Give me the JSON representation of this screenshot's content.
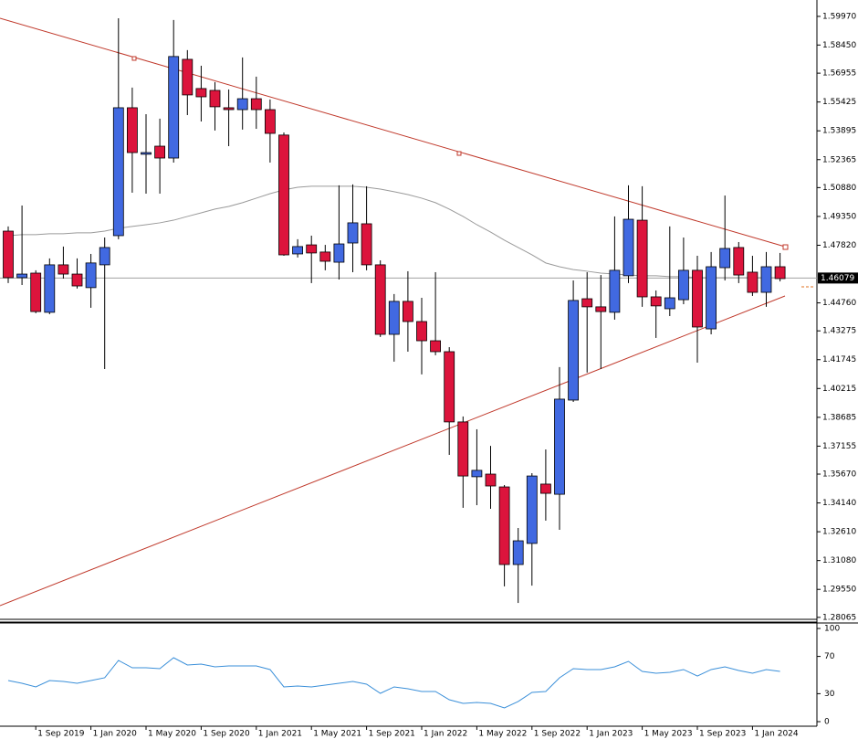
{
  "chart_data": [
    {
      "type": "candlestick",
      "categories": [
        null,
        null,
        "1 Sep 2019",
        null,
        null,
        null,
        "1 Jan 2020",
        null,
        null,
        null,
        "1 May 2020",
        null,
        null,
        null,
        "1 Sep 2020",
        null,
        null,
        null,
        "1 Jan 2021",
        null,
        null,
        null,
        "1 May 2021",
        null,
        null,
        null,
        "1 Sep 2021",
        null,
        null,
        null,
        "1 Jan 2022",
        null,
        null,
        null,
        "1 May 2022",
        null,
        null,
        null,
        "1 Sep 2022",
        null,
        null,
        null,
        "1 Jan 2023",
        null,
        null,
        null,
        "1 May 2023",
        null,
        null,
        null,
        "1 Sep 2023",
        null,
        null,
        null,
        "1 Jan 2024",
        null,
        null
      ],
      "open": [
        1.4857,
        1.461,
        1.4634,
        1.4426,
        1.4678,
        1.4629,
        1.4557,
        1.4678,
        1.4833,
        1.5512,
        1.5265,
        1.5308,
        1.5245,
        1.5769,
        1.5614,
        1.5604,
        1.5512,
        1.5502,
        1.556,
        1.5502,
        1.5367,
        1.4736,
        1.4784,
        1.4746,
        1.4692,
        1.4794,
        1.4896,
        1.4678,
        1.4309,
        1.4484,
        1.4377,
        1.4275,
        1.4217,
        1.3844,
        1.3553,
        1.3567,
        1.3499,
        1.3087,
        1.3199,
        1.3514,
        1.346,
        1.396,
        1.4498,
        1.4455,
        1.4426,
        1.462,
        1.4915,
        1.4508,
        1.4445,
        1.4493,
        1.4649,
        1.4338,
        1.4663,
        1.477,
        1.4639,
        1.4532,
        1.4668
      ],
      "high": [
        1.4882,
        1.4993,
        1.4649,
        1.4712,
        1.4775,
        1.4712,
        1.4736,
        1.4823,
        1.5987,
        1.5619,
        1.5478,
        1.5454,
        1.5978,
        1.5818,
        1.5735,
        1.5648,
        1.5609,
        1.5779,
        1.5677,
        1.5556,
        1.5381,
        1.4814,
        1.4833,
        1.4784,
        1.51,
        1.5105,
        1.5095,
        1.4702,
        1.4523,
        1.4644,
        1.4503,
        1.4639,
        1.4241,
        1.3873,
        1.3805,
        1.3717,
        1.3509,
        1.3281,
        1.3572,
        1.3698,
        1.4135,
        1.4595,
        1.4639,
        1.4624,
        1.4935,
        1.51,
        1.5095,
        1.4542,
        1.4882,
        1.4823,
        1.4726,
        1.4746,
        1.5046,
        1.4799,
        1.4726,
        1.4746,
        1.4741
      ],
      "low": [
        1.4581,
        1.4571,
        1.4421,
        1.4416,
        1.4605,
        1.4552,
        1.445,
        1.4125,
        1.4814,
        1.5061,
        1.5056,
        1.5056,
        1.5221,
        1.5473,
        1.5439,
        1.5391,
        1.5308,
        1.5396,
        1.54,
        1.5221,
        1.4726,
        1.4717,
        1.4581,
        1.4649,
        1.46,
        1.4639,
        1.4649,
        1.4295,
        1.4164,
        1.4217,
        1.4096,
        1.4198,
        1.3669,
        1.3388,
        1.3402,
        1.3383,
        1.2971,
        1.2883,
        1.2975,
        1.332,
        1.3271,
        1.395,
        1.4106,
        1.4125,
        1.4387,
        1.4581,
        1.4455,
        1.429,
        1.4406,
        1.4469,
        1.4159,
        1.4309,
        1.4595,
        1.4581,
        1.4513,
        1.4455,
        1.459
      ],
      "close": [
        1.461,
        1.4629,
        1.443,
        1.4678,
        1.4629,
        1.4566,
        1.4688,
        1.477,
        1.5512,
        1.5274,
        1.5274,
        1.5245,
        1.5784,
        1.558,
        1.557,
        1.5517,
        1.5502,
        1.556,
        1.5502,
        1.5376,
        1.4731,
        1.4775,
        1.4741,
        1.4697,
        1.4789,
        1.4901,
        1.4678,
        1.4309,
        1.4484,
        1.4377,
        1.4275,
        1.4217,
        1.3844,
        1.3557,
        1.3587,
        1.3504,
        1.3087,
        1.3213,
        1.3557,
        1.3465,
        1.3965,
        1.4489,
        1.4455,
        1.443,
        1.4649,
        1.492,
        1.4508,
        1.446,
        1.4503,
        1.4649,
        1.4348,
        1.4668,
        1.4765,
        1.4624,
        1.4532,
        1.4668,
        1.4605
      ],
      "up_color": "#4169e1",
      "down_color": "#dc143c",
      "moving_average": {
        "color": "#9a9a9a",
        "values": [
          1.4833,
          1.4838,
          1.4838,
          1.4843,
          1.4843,
          1.4848,
          1.4848,
          1.4857,
          1.4872,
          1.4882,
          1.4891,
          1.4901,
          1.4915,
          1.4935,
          1.4954,
          1.4974,
          1.4988,
          1.5008,
          1.5032,
          1.5056,
          1.5076,
          1.509,
          1.5095,
          1.5095,
          1.5095,
          1.5095,
          1.509,
          1.508,
          1.5066,
          1.5051,
          1.5032,
          1.5008,
          1.4974,
          1.4935,
          1.4891,
          1.4852,
          1.4809,
          1.477,
          1.4731,
          1.4688,
          1.4668,
          1.4653,
          1.4644,
          1.4634,
          1.4629,
          1.4624,
          1.462,
          1.462,
          1.4615,
          1.4615,
          1.461,
          1.461,
          1.461,
          1.461,
          1.461,
          1.461,
          1.461
        ]
      },
      "last_price": 1.46079,
      "ylim": [
        1.2796,
        1.6084
      ],
      "yticks": [
        {
          "value": 1.5997,
          "label": "1.59970"
        },
        {
          "value": 1.5845,
          "label": "1.58450"
        },
        1.56955,
        1.55425,
        1.53895,
        1.52365,
        {
          "value": 1.5088,
          "label": "1.50880"
        },
        {
          "value": 1.4935,
          "label": "1.49350"
        },
        {
          "value": 1.4782,
          "label": "1.47820"
        },
        {
          "value": 1.4476,
          "label": "1.44760"
        },
        1.43275,
        1.41745,
        1.40215,
        1.38685,
        1.37155,
        {
          "value": 1.3567,
          "label": "1.35670"
        },
        {
          "value": 1.3414,
          "label": "1.34140"
        },
        {
          "value": 1.3261,
          "label": "1.32610"
        },
        {
          "value": 1.3108,
          "label": "1.31080"
        },
        {
          "value": 1.2955,
          "label": "1.29550"
        },
        1.28065
      ]
    },
    {
      "type": "line",
      "series": [
        {
          "color": "#3a8fd9",
          "values": [
            44.1,
            41.2,
            37.3,
            44.1,
            43.1,
            41.2,
            44.1,
            47.1,
            65.7,
            57.8,
            57.8,
            56.9,
            68.6,
            60.8,
            61.8,
            58.8,
            59.8,
            59.8,
            59.8,
            55.9,
            37.3,
            38.2,
            37.3,
            39.2,
            41.2,
            43.1,
            40.2,
            30.4,
            37.3,
            35.3,
            32.4,
            32.4,
            23.5,
            19.6,
            20.6,
            19.6,
            14.7,
            21.6,
            31.4,
            32.4,
            47.1,
            56.9,
            55.9,
            55.9,
            58.8,
            64.7,
            53.9,
            52.0,
            52.9,
            55.9,
            49.0,
            55.9,
            58.8,
            54.9,
            52.0,
            55.9,
            53.9
          ]
        }
      ],
      "ylim": [
        -4.9,
        104.9
      ],
      "yticks": [
        100,
        70,
        30,
        0
      ]
    }
  ]
}
